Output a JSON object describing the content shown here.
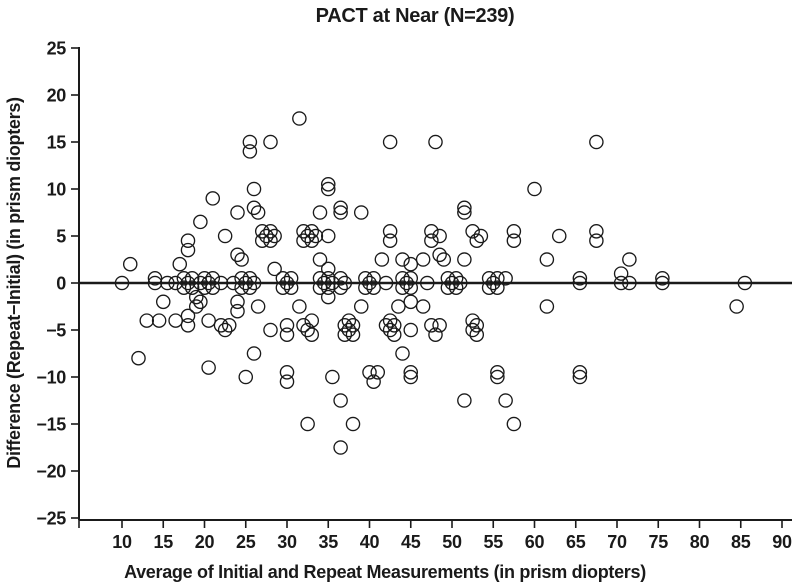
{
  "chart_data": {
    "type": "scatter",
    "title": "PACT at Near (N=239)",
    "xlabel": "Average of Initial and Repeat Measurements (in prism diopters)",
    "ylabel": "Difference (Repeat−Initial) (in prism diopters)",
    "xlim": [
      5,
      91
    ],
    "ylim": [
      -25,
      25
    ],
    "x_ticks": [
      10,
      15,
      20,
      25,
      30,
      35,
      40,
      45,
      50,
      55,
      60,
      65,
      70,
      75,
      80,
      85,
      90
    ],
    "y_ticks": [
      25,
      20,
      15,
      10,
      5,
      0,
      -5,
      -10,
      -15,
      -20,
      -25
    ],
    "reference_line_y": 0,
    "grid": false,
    "legend": "none",
    "marker": "open-circle",
    "colors": {
      "stroke": "#1a1a1a",
      "background": "#ffffff"
    },
    "points": [
      [
        10,
        0
      ],
      [
        11,
        2
      ],
      [
        12,
        -8
      ],
      [
        14,
        0.5
      ],
      [
        14,
        0
      ],
      [
        13,
        -4
      ],
      [
        14.5,
        -4
      ],
      [
        16.5,
        -4
      ],
      [
        15,
        -2
      ],
      [
        15.5,
        0
      ],
      [
        16.5,
        0
      ],
      [
        17,
        2
      ],
      [
        17.5,
        0.5
      ],
      [
        18.5,
        0.5
      ],
      [
        20,
        0.5
      ],
      [
        21,
        0.5
      ],
      [
        17.5,
        -0.5
      ],
      [
        18.5,
        -0.5
      ],
      [
        20,
        -0.5
      ],
      [
        21,
        -0.5
      ],
      [
        18,
        0
      ],
      [
        19.5,
        0
      ],
      [
        20.5,
        0
      ],
      [
        22,
        0
      ],
      [
        21,
        9
      ],
      [
        19.5,
        6.5
      ],
      [
        18,
        4.5
      ],
      [
        18,
        3.5
      ],
      [
        22.5,
        5
      ],
      [
        24,
        3
      ],
      [
        24.5,
        2.5
      ],
      [
        24,
        7.5
      ],
      [
        26,
        8
      ],
      [
        26.5,
        7.5
      ],
      [
        26,
        10
      ],
      [
        25.5,
        15
      ],
      [
        25.5,
        14
      ],
      [
        28,
        15
      ],
      [
        23.5,
        0
      ],
      [
        24.5,
        0.5
      ],
      [
        24.5,
        -0.5
      ],
      [
        25,
        0
      ],
      [
        25.5,
        0.5
      ],
      [
        25.5,
        -0.5
      ],
      [
        26,
        0
      ],
      [
        28.5,
        1.5
      ],
      [
        29.5,
        0.5
      ],
      [
        30.5,
        0.5
      ],
      [
        29.5,
        -0.5
      ],
      [
        30.5,
        -0.5
      ],
      [
        30,
        0
      ],
      [
        19,
        -1.5
      ],
      [
        19.5,
        -2
      ],
      [
        19,
        -2.5
      ],
      [
        18,
        -3.5
      ],
      [
        18,
        -4.5
      ],
      [
        20.5,
        -4
      ],
      [
        22,
        -4.5
      ],
      [
        23,
        -4.5
      ],
      [
        22.5,
        -5
      ],
      [
        24,
        -2
      ],
      [
        24,
        -3
      ],
      [
        26.5,
        -2.5
      ],
      [
        28,
        -5
      ],
      [
        20.5,
        -9
      ],
      [
        25,
        -10
      ],
      [
        26,
        -7.5
      ],
      [
        31.5,
        17.5
      ],
      [
        35,
        10.5
      ],
      [
        35,
        10
      ],
      [
        34,
        7.5
      ],
      [
        36.5,
        8
      ],
      [
        36.5,
        7.5
      ],
      [
        39,
        7.5
      ],
      [
        27,
        5.5
      ],
      [
        28,
        5.5
      ],
      [
        27,
        4.5
      ],
      [
        28,
        4.5
      ],
      [
        27.5,
        5
      ],
      [
        28.5,
        5
      ],
      [
        32,
        5.5
      ],
      [
        33,
        5.5
      ],
      [
        32,
        4.5
      ],
      [
        33,
        4.5
      ],
      [
        32.5,
        5
      ],
      [
        33.5,
        5
      ],
      [
        35,
        5
      ],
      [
        42.5,
        5.5
      ],
      [
        42.5,
        4.5
      ],
      [
        34,
        2.5
      ],
      [
        41.5,
        2.5
      ],
      [
        44,
        2.5
      ],
      [
        45,
        2
      ],
      [
        46.5,
        2.5
      ],
      [
        35,
        1.5
      ],
      [
        34,
        0.5
      ],
      [
        35,
        0.5
      ],
      [
        36.5,
        0.5
      ],
      [
        34.5,
        0
      ],
      [
        35.5,
        0
      ],
      [
        37,
        0
      ],
      [
        34,
        -0.5
      ],
      [
        35,
        -0.5
      ],
      [
        36.5,
        -0.5
      ],
      [
        35,
        -1.5
      ],
      [
        39.5,
        0.5
      ],
      [
        40.5,
        0.5
      ],
      [
        40,
        0
      ],
      [
        39.5,
        -0.5
      ],
      [
        40.5,
        -0.5
      ],
      [
        42,
        0
      ],
      [
        44,
        0.5
      ],
      [
        45,
        0.5
      ],
      [
        44.5,
        0
      ],
      [
        44,
        -0.5
      ],
      [
        45,
        -0.5
      ],
      [
        47,
        0
      ],
      [
        31.5,
        -2.5
      ],
      [
        39,
        -2.5
      ],
      [
        43.5,
        -2.5
      ],
      [
        45,
        -2
      ],
      [
        46.5,
        -2.5
      ],
      [
        30,
        -4.5
      ],
      [
        30,
        -5.5
      ],
      [
        32,
        -4.5
      ],
      [
        33,
        -4
      ],
      [
        32.5,
        -5
      ],
      [
        33,
        -5.5
      ],
      [
        37,
        -4.5
      ],
      [
        38,
        -4.5
      ],
      [
        37.5,
        -4
      ],
      [
        37,
        -5.5
      ],
      [
        38,
        -5.5
      ],
      [
        37.5,
        -5
      ],
      [
        42,
        -4.5
      ],
      [
        43,
        -4.5
      ],
      [
        42.5,
        -4
      ],
      [
        42.5,
        -5
      ],
      [
        43,
        -5.5
      ],
      [
        45,
        -5
      ],
      [
        44,
        -7.5
      ],
      [
        30,
        -9.5
      ],
      [
        30,
        -10.5
      ],
      [
        35.5,
        -10
      ],
      [
        40,
        -9.5
      ],
      [
        41,
        -9.5
      ],
      [
        40.5,
        -10.5
      ],
      [
        45,
        -9.5
      ],
      [
        45,
        -10
      ],
      [
        36.5,
        -12.5
      ],
      [
        32.5,
        -15
      ],
      [
        38,
        -15
      ],
      [
        36.5,
        -17.5
      ],
      [
        48,
        15
      ],
      [
        42.5,
        15
      ],
      [
        67.5,
        15
      ],
      [
        60,
        10
      ],
      [
        51.5,
        8
      ],
      [
        51.5,
        7.5
      ],
      [
        47.5,
        5.5
      ],
      [
        47.5,
        4.5
      ],
      [
        48.5,
        5
      ],
      [
        52.5,
        5.5
      ],
      [
        53,
        4.5
      ],
      [
        53.5,
        5
      ],
      [
        57.5,
        5.5
      ],
      [
        57.5,
        4.5
      ],
      [
        63,
        5
      ],
      [
        67.5,
        5.5
      ],
      [
        67.5,
        4.5
      ],
      [
        48.5,
        3
      ],
      [
        49,
        2.5
      ],
      [
        51.5,
        2.5
      ],
      [
        61.5,
        2.5
      ],
      [
        71.5,
        2.5
      ],
      [
        49.5,
        0.5
      ],
      [
        50.5,
        0.5
      ],
      [
        50,
        0
      ],
      [
        49.5,
        -0.5
      ],
      [
        50.5,
        -0.5
      ],
      [
        51,
        0
      ],
      [
        54.5,
        0.5
      ],
      [
        55.5,
        0.5
      ],
      [
        56.5,
        0.5
      ],
      [
        55,
        0
      ],
      [
        54.5,
        -0.5
      ],
      [
        55.5,
        -0.5
      ],
      [
        65.5,
        0.5
      ],
      [
        65.5,
        0
      ],
      [
        70.5,
        1
      ],
      [
        70.5,
        0
      ],
      [
        71.5,
        0
      ],
      [
        75.5,
        0.5
      ],
      [
        75.5,
        0
      ],
      [
        85.5,
        0
      ],
      [
        61.5,
        -2.5
      ],
      [
        84.5,
        -2.5
      ],
      [
        47.5,
        -4.5
      ],
      [
        48.5,
        -4.5
      ],
      [
        48,
        -5.5
      ],
      [
        52.5,
        -4
      ],
      [
        53,
        -4.5
      ],
      [
        52.5,
        -5
      ],
      [
        53,
        -5.5
      ],
      [
        55.5,
        -9.5
      ],
      [
        55.5,
        -10
      ],
      [
        65.5,
        -9.5
      ],
      [
        65.5,
        -10
      ],
      [
        51.5,
        -12.5
      ],
      [
        56.5,
        -12.5
      ],
      [
        57.5,
        -15
      ]
    ]
  }
}
